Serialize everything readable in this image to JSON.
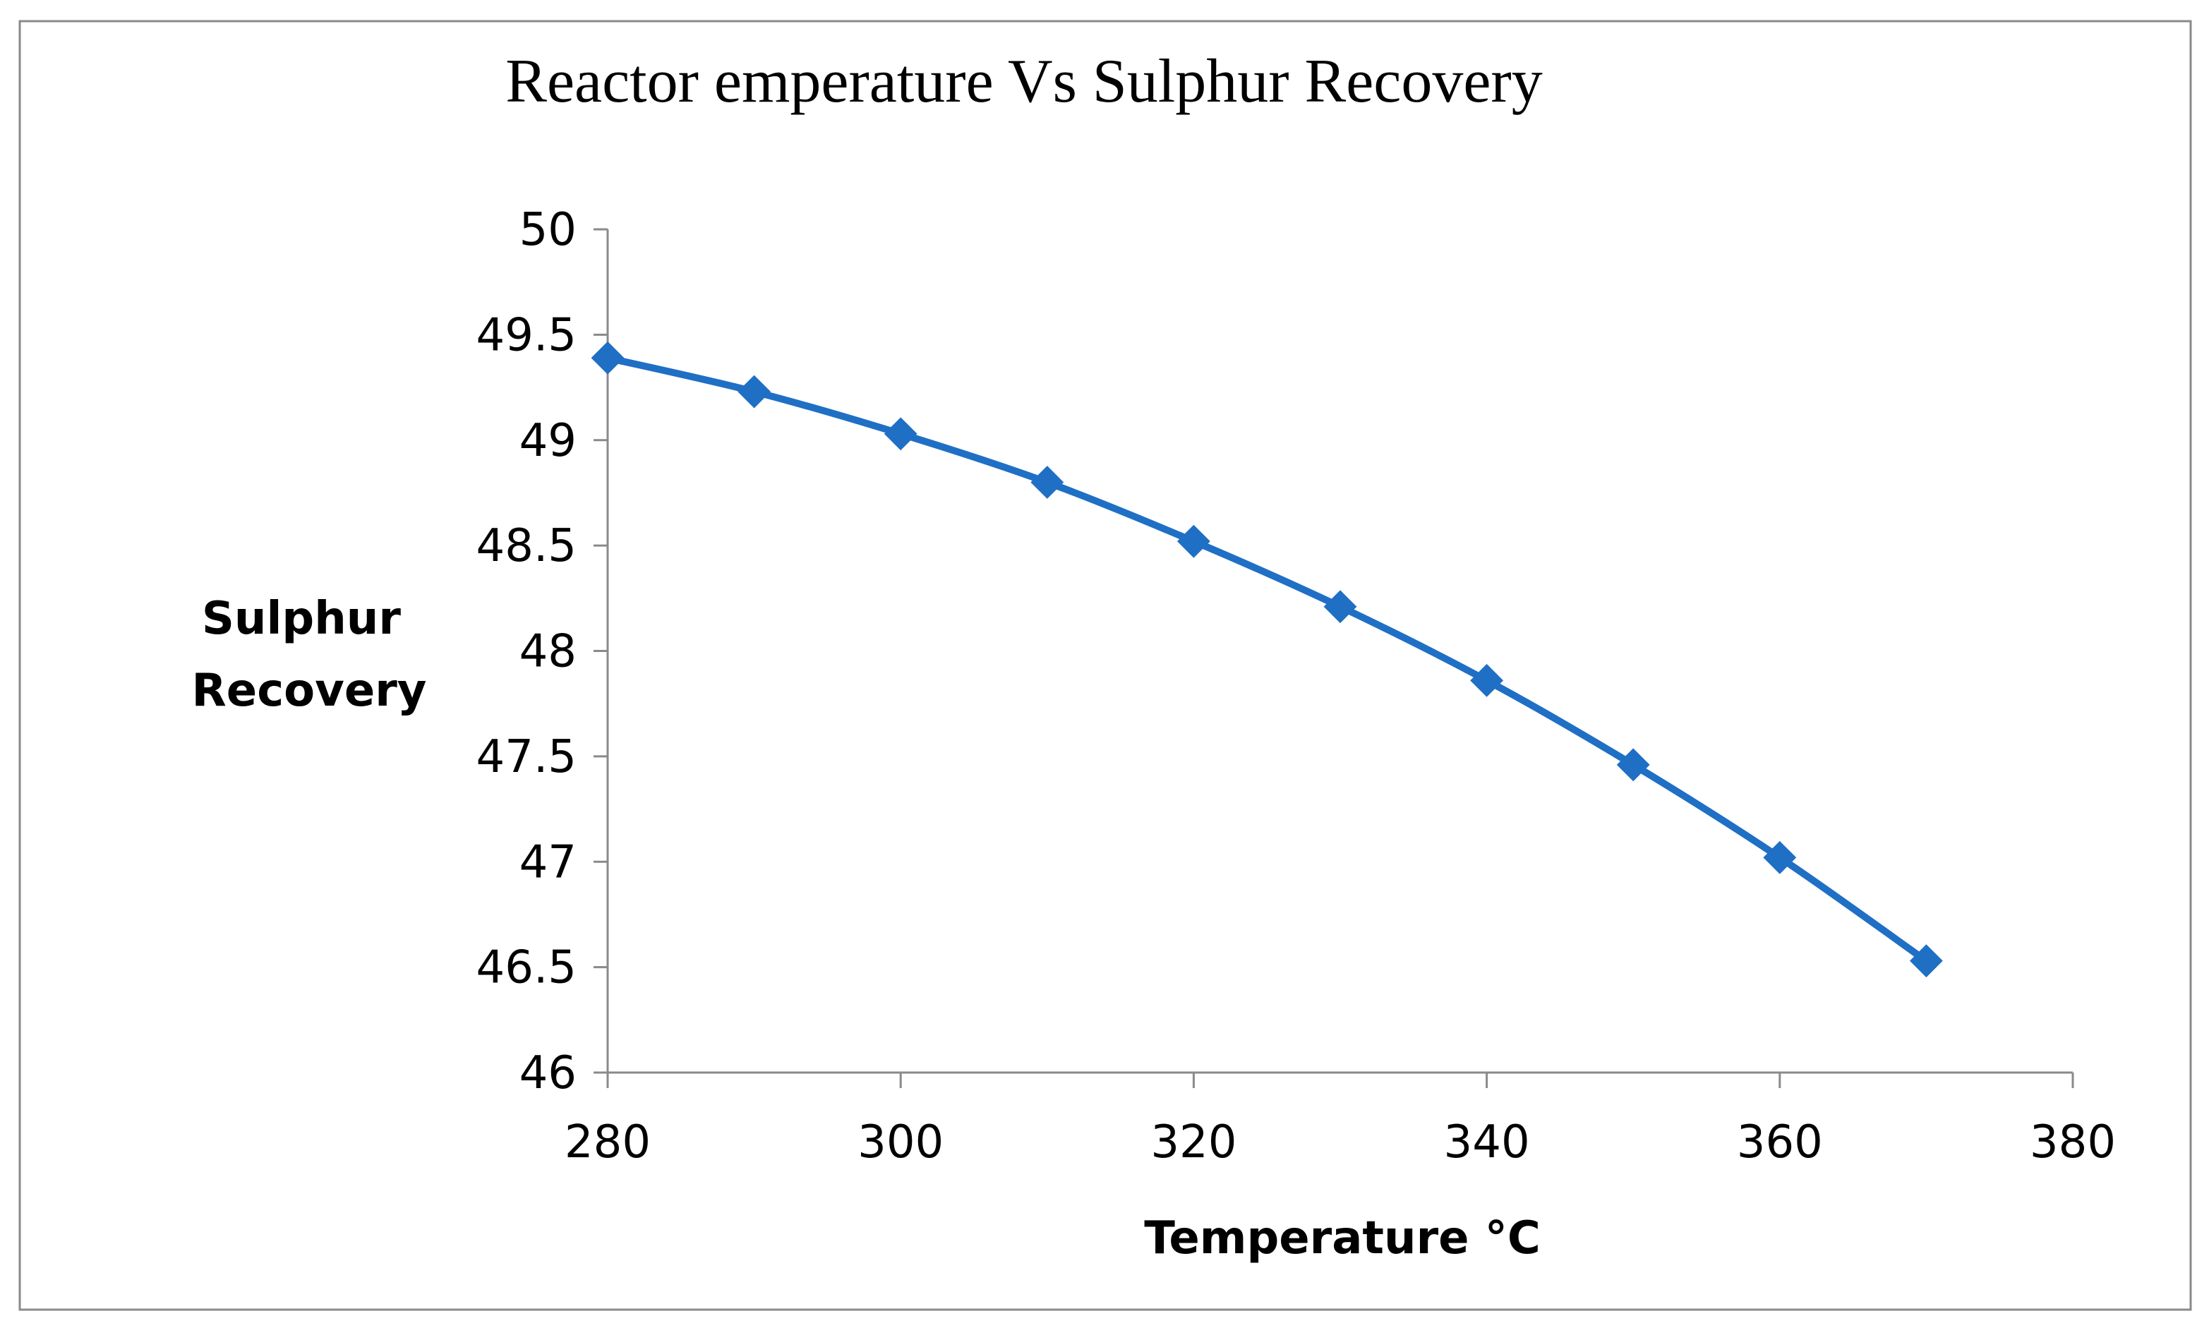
{
  "chart_data": {
    "type": "line",
    "title": "Reactor emperature Vs Sulphur Recovery",
    "xlabel": "Temperature °C",
    "ylabel_lines": [
      "Sulphur",
      "Recovery"
    ],
    "xlim": [
      280,
      380
    ],
    "ylim": [
      46,
      50
    ],
    "x_ticks": [
      "280",
      "300",
      "320",
      "340",
      "360",
      "380"
    ],
    "y_ticks": [
      "46",
      "46.5",
      "47",
      "47.5",
      "48",
      "48.5",
      "49",
      "49.5",
      "50"
    ],
    "grid": false,
    "legend": "none",
    "marker": "diamond",
    "color": "#1f6fc5",
    "series": [
      {
        "x": [
          280,
          290,
          300,
          310,
          320,
          330,
          340,
          350,
          360,
          370
        ],
        "values": [
          49.39,
          49.23,
          49.03,
          48.8,
          48.52,
          48.21,
          47.86,
          47.46,
          47.02,
          46.53
        ]
      }
    ]
  }
}
